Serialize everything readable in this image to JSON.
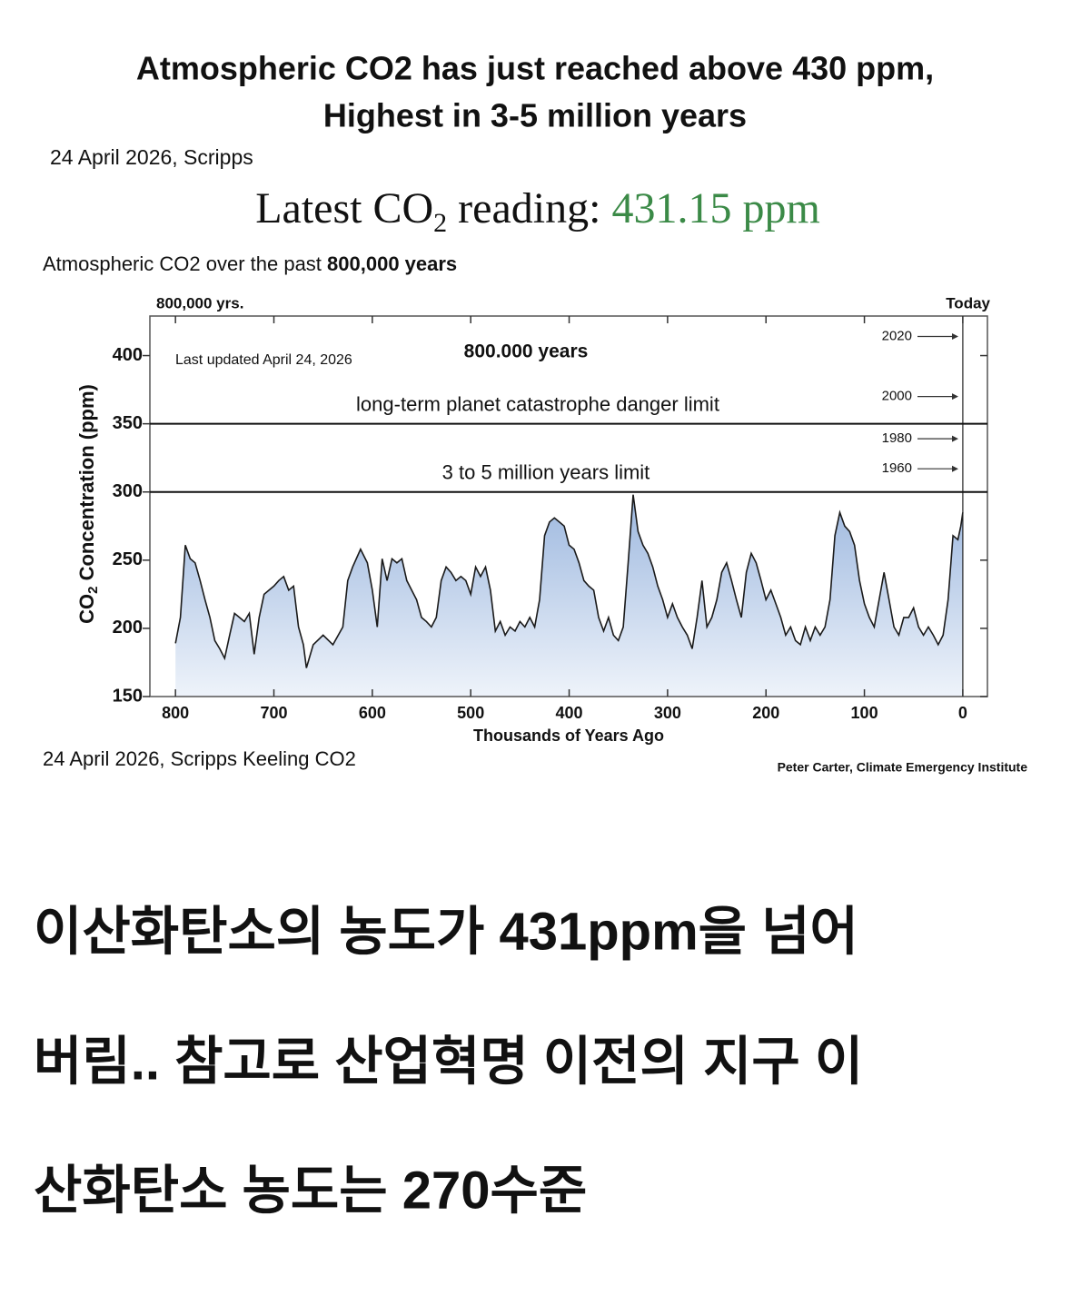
{
  "header": {
    "title_lines": [
      "Atmospheric CO2 has just reached above 430 ppm,",
      "Highest in 3-5 million years"
    ],
    "source": "24 April 2026, Scripps"
  },
  "latest_reading": {
    "label": "Latest CO",
    "subscript": "2",
    "label_after": " reading: ",
    "value": "431.15 ppm"
  },
  "chart_data": {
    "type": "area",
    "title": {
      "text": "Atmospheric CO2 over the past ",
      "bold": "800,000 years"
    },
    "left_label": "800,000 yrs.",
    "right_label": "Today",
    "annotations": {
      "updated": "Last updated April 24, 2026",
      "span": "800.000 years"
    },
    "reference_lines": [
      {
        "y": 350,
        "label": "long-term planet catastrophe danger limit"
      },
      {
        "y": 300,
        "label": "3 to 5 million years limit"
      }
    ],
    "year_markers": [
      {
        "label": "2020",
        "y": 414
      },
      {
        "label": "2000",
        "y": 370
      },
      {
        "label": "1980",
        "y": 339
      },
      {
        "label": "1960",
        "y": 317
      }
    ],
    "y_label": {
      "text": "CO",
      "subscript": "2",
      "text_after": " Concentration (ppm)"
    },
    "x_label": "Thousands of Years Ago",
    "x": [
      800,
      795,
      790,
      785,
      780,
      775,
      770,
      765,
      760,
      755,
      750,
      745,
      740,
      735,
      730,
      725,
      720,
      715,
      710,
      705,
      700,
      695,
      690,
      685,
      680,
      675,
      670,
      667,
      660,
      650,
      640,
      630,
      625,
      620,
      612,
      605,
      600,
      595,
      590,
      585,
      580,
      575,
      570,
      565,
      560,
      555,
      550,
      545,
      540,
      535,
      530,
      525,
      520,
      515,
      510,
      505,
      500,
      495,
      490,
      485,
      480,
      475,
      470,
      465,
      460,
      455,
      450,
      445,
      440,
      435,
      430,
      425,
      420,
      415,
      410,
      405,
      400,
      395,
      390,
      385,
      380,
      375,
      370,
      365,
      360,
      355,
      350,
      345,
      340,
      335,
      330,
      325,
      320,
      315,
      310,
      305,
      300,
      295,
      290,
      285,
      280,
      275,
      270,
      265,
      260,
      255,
      250,
      245,
      240,
      235,
      230,
      225,
      220,
      215,
      210,
      205,
      200,
      195,
      190,
      185,
      180,
      175,
      170,
      165,
      160,
      155,
      150,
      145,
      140,
      135,
      130,
      125,
      120,
      115,
      110,
      105,
      100,
      95,
      90,
      85,
      80,
      75,
      70,
      65,
      60,
      55,
      50,
      45,
      40,
      35,
      30,
      25,
      20,
      15,
      10,
      5,
      2,
      0
    ],
    "values": [
      189,
      208,
      261,
      251,
      248,
      235,
      221,
      208,
      191,
      185,
      178,
      195,
      211,
      208,
      205,
      211,
      181,
      208,
      225,
      228,
      231,
      235,
      238,
      228,
      231,
      201,
      188,
      171,
      188,
      195,
      188,
      201,
      235,
      245,
      258,
      248,
      228,
      201,
      251,
      235,
      251,
      248,
      251,
      235,
      228,
      221,
      208,
      205,
      201,
      208,
      235,
      245,
      241,
      235,
      238,
      235,
      225,
      245,
      238,
      245,
      228,
      198,
      205,
      195,
      201,
      198,
      205,
      201,
      208,
      201,
      221,
      268,
      278,
      281,
      278,
      275,
      261,
      258,
      248,
      235,
      231,
      228,
      208,
      198,
      208,
      195,
      191,
      201,
      248,
      298,
      271,
      261,
      255,
      245,
      231,
      221,
      208,
      218,
      208,
      201,
      195,
      185,
      208,
      235,
      201,
      208,
      221,
      241,
      248,
      235,
      221,
      208,
      241,
      255,
      248,
      235,
      221,
      228,
      218,
      208,
      195,
      201,
      191,
      188,
      201,
      191,
      201,
      195,
      201,
      221,
      268,
      285,
      275,
      271,
      261,
      235,
      218,
      208,
      201,
      221,
      241,
      221,
      201,
      195,
      208,
      208,
      215,
      201,
      195,
      201,
      195,
      188,
      195,
      221,
      268,
      265,
      275,
      285
    ],
    "color": "#1a1a1a",
    "fill": "#a9c1e3",
    "xlim": [
      826,
      -25
    ],
    "xticks": [
      800,
      700,
      600,
      500,
      400,
      300,
      200,
      100,
      0
    ],
    "ylim": [
      150,
      429
    ],
    "yticks": [
      150,
      200,
      250,
      300,
      350,
      400
    ]
  },
  "footer": {
    "source": "24 April 2026, Scripps Keeling CO2",
    "credit": "Peter Carter, Climate Emergency Institute"
  },
  "caption": [
    "이산화탄소의 농도가 431ppm을 넘어",
    "버림.. 참고로 산업혁명 이전의 지구 이",
    "산화탄소 농도는 270수준"
  ]
}
